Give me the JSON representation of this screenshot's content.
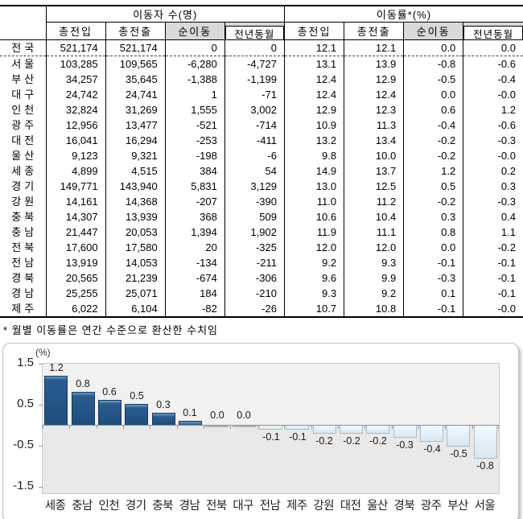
{
  "table": {
    "group_headers": [
      "이동자 수(명)",
      "이동률*(%)"
    ],
    "sub_headers": [
      "총전입",
      "총전출",
      "순이동",
      "전년동월",
      "총전입",
      "총전출",
      "순이동",
      "전년동월"
    ],
    "rows": [
      {
        "region": "전국",
        "values": [
          "521,174",
          "521,174",
          "0",
          "0",
          "12.1",
          "12.1",
          "0.0",
          "0.0"
        ]
      },
      {
        "region": "서울",
        "values": [
          "103,285",
          "109,565",
          "-6,280",
          "-4,727",
          "13.1",
          "13.9",
          "-0.8",
          "-0.6"
        ]
      },
      {
        "region": "부산",
        "values": [
          "34,257",
          "35,645",
          "-1,388",
          "-1,199",
          "12.4",
          "12.9",
          "-0.5",
          "-0.4"
        ]
      },
      {
        "region": "대구",
        "values": [
          "24,742",
          "24,741",
          "1",
          "-71",
          "12.4",
          "12.4",
          "0.0",
          "-0.0"
        ]
      },
      {
        "region": "인천",
        "values": [
          "32,824",
          "31,269",
          "1,555",
          "3,002",
          "12.9",
          "12.3",
          "0.6",
          "1.2"
        ]
      },
      {
        "region": "광주",
        "values": [
          "12,956",
          "13,477",
          "-521",
          "-714",
          "10.9",
          "11.3",
          "-0.4",
          "-0.6"
        ]
      },
      {
        "region": "대전",
        "values": [
          "16,041",
          "16,294",
          "-253",
          "-411",
          "13.2",
          "13.4",
          "-0.2",
          "-0.3"
        ]
      },
      {
        "region": "울산",
        "values": [
          "9,123",
          "9,321",
          "-198",
          "-6",
          "9.8",
          "10.0",
          "-0.2",
          "-0.0"
        ]
      },
      {
        "region": "세종",
        "values": [
          "4,899",
          "4,515",
          "384",
          "54",
          "14.9",
          "13.7",
          "1.2",
          "0.2"
        ]
      },
      {
        "region": "경기",
        "values": [
          "149,771",
          "143,940",
          "5,831",
          "3,129",
          "13.0",
          "12.5",
          "0.5",
          "0.3"
        ]
      },
      {
        "region": "강원",
        "values": [
          "14,161",
          "14,368",
          "-207",
          "-390",
          "11.0",
          "11.2",
          "-0.2",
          "-0.3"
        ]
      },
      {
        "region": "충북",
        "values": [
          "14,307",
          "13,939",
          "368",
          "509",
          "10.6",
          "10.4",
          "0.3",
          "0.4"
        ]
      },
      {
        "region": "충남",
        "values": [
          "21,447",
          "20,053",
          "1,394",
          "1,902",
          "11.9",
          "11.1",
          "0.8",
          "1.1"
        ]
      },
      {
        "region": "전북",
        "values": [
          "17,600",
          "17,580",
          "20",
          "-325",
          "12.0",
          "12.0",
          "0.0",
          "-0.2"
        ]
      },
      {
        "region": "전남",
        "values": [
          "13,919",
          "14,053",
          "-134",
          "-211",
          "9.2",
          "9.3",
          "-0.1",
          "-0.1"
        ]
      },
      {
        "region": "경북",
        "values": [
          "20,565",
          "21,239",
          "-674",
          "-306",
          "9.6",
          "9.9",
          "-0.3",
          "-0.1"
        ]
      },
      {
        "region": "경남",
        "values": [
          "25,255",
          "25,071",
          "184",
          "-210",
          "9.3",
          "9.2",
          "0.1",
          "-0.1"
        ]
      },
      {
        "region": "제주",
        "values": [
          "6,022",
          "6,104",
          "-82",
          "-26",
          "10.7",
          "10.8",
          "-0.1",
          "-0.0"
        ]
      }
    ]
  },
  "footnote": "* 월별 이동률은 연간 수준으로 환산한 수치임",
  "chart_data": {
    "type": "bar",
    "unit_label": "(%)",
    "categories": [
      "세종",
      "충남",
      "인천",
      "경기",
      "충북",
      "경남",
      "전북",
      "대구",
      "전남",
      "제주",
      "강원",
      "대전",
      "울산",
      "경북",
      "광주",
      "부산",
      "서울"
    ],
    "values": [
      1.2,
      0.8,
      0.6,
      0.5,
      0.3,
      0.1,
      0.0,
      0.0,
      -0.1,
      -0.1,
      -0.2,
      -0.2,
      -0.2,
      -0.3,
      -0.4,
      -0.5,
      -0.8
    ],
    "value_labels": [
      "1.2",
      "0.8",
      "0.6",
      "0.5",
      "0.3",
      "0.1",
      "0.0",
      "0.0",
      "-0.1",
      "-0.1",
      "-0.2",
      "-0.2",
      "-0.2",
      "-0.3",
      "-0.4",
      "-0.5",
      "-0.8"
    ],
    "yticks": [
      "1.5",
      "0.5",
      "-0.5",
      "-1.5"
    ],
    "ylim": [
      -1.65,
      1.55
    ],
    "grid": false,
    "legend": "none",
    "positive_bar_color": "#1F4E7C",
    "negative_bar_color": "#DCE9F5",
    "plot_background": "#EDEDED"
  }
}
